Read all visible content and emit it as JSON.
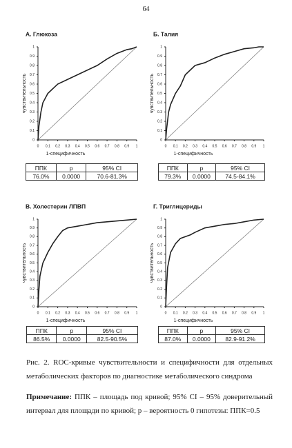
{
  "page_number": "64",
  "chart_data": [
    {
      "type": "line",
      "title": "А. Глюкоза",
      "xlabel": "1-специфичность",
      "ylabel": "чувствительность",
      "color": "#222",
      "x": [
        0,
        0.01,
        0.03,
        0.05,
        0.1,
        0.15,
        0.2,
        0.3,
        0.4,
        0.5,
        0.6,
        0.7,
        0.8,
        0.9,
        0.95,
        1
      ],
      "values": [
        0,
        0.15,
        0.3,
        0.4,
        0.5,
        0.55,
        0.6,
        0.65,
        0.7,
        0.75,
        0.8,
        0.87,
        0.93,
        0.97,
        0.98,
        1
      ],
      "xlim": [
        0,
        1
      ],
      "ylim": [
        0,
        1
      ],
      "xticks": [
        0,
        0.1,
        0.2,
        0.3,
        0.4,
        0.5,
        0.6,
        0.7,
        0.8,
        0.9,
        1
      ],
      "yticks": [
        0,
        0.1,
        0.2,
        0.3,
        0.4,
        0.5,
        0.6,
        0.7,
        0.8,
        0.9,
        1
      ]
    },
    {
      "type": "line",
      "title": "Б. Талия",
      "xlabel": "1-специфичность",
      "ylabel": "чувствительность",
      "color": "#222",
      "x": [
        0,
        0.01,
        0.03,
        0.05,
        0.1,
        0.15,
        0.2,
        0.3,
        0.4,
        0.5,
        0.6,
        0.7,
        0.8,
        0.9,
        0.95,
        1
      ],
      "values": [
        0,
        0.12,
        0.3,
        0.38,
        0.5,
        0.58,
        0.7,
        0.8,
        0.83,
        0.88,
        0.92,
        0.95,
        0.98,
        0.99,
        1,
        1
      ],
      "xlim": [
        0,
        1
      ],
      "ylim": [
        0,
        1
      ],
      "xticks": [
        0,
        0.1,
        0.2,
        0.3,
        0.4,
        0.5,
        0.6,
        0.7,
        0.8,
        0.9,
        1
      ],
      "yticks": [
        0,
        0.1,
        0.2,
        0.3,
        0.4,
        0.5,
        0.6,
        0.7,
        0.8,
        0.9,
        1
      ]
    },
    {
      "type": "line",
      "title": "В. Холестерин ЛПВП",
      "xlabel": "1-специфичность",
      "ylabel": "чувствительность",
      "color": "#222",
      "x": [
        0,
        0.01,
        0.02,
        0.05,
        0.1,
        0.15,
        0.2,
        0.25,
        0.3,
        0.4,
        0.5,
        0.6,
        0.7,
        0.8,
        0.9,
        1
      ],
      "values": [
        0,
        0.2,
        0.35,
        0.5,
        0.62,
        0.72,
        0.8,
        0.87,
        0.9,
        0.92,
        0.94,
        0.96,
        0.97,
        0.98,
        0.99,
        1
      ],
      "xlim": [
        0,
        1
      ],
      "ylim": [
        0,
        1
      ],
      "xticks": [
        0,
        0.1,
        0.2,
        0.3,
        0.4,
        0.5,
        0.6,
        0.7,
        0.8,
        0.9,
        1
      ],
      "yticks": [
        0,
        0.1,
        0.2,
        0.3,
        0.4,
        0.5,
        0.6,
        0.7,
        0.8,
        0.9,
        1
      ]
    },
    {
      "type": "line",
      "title": "Г. Триглицериды",
      "xlabel": "1-специфичность",
      "ylabel": "чувствительность",
      "color": "#222",
      "x": [
        0,
        0.01,
        0.02,
        0.05,
        0.1,
        0.15,
        0.2,
        0.25,
        0.3,
        0.4,
        0.5,
        0.6,
        0.7,
        0.8,
        0.9,
        1
      ],
      "values": [
        0,
        0.25,
        0.45,
        0.62,
        0.72,
        0.78,
        0.8,
        0.82,
        0.85,
        0.9,
        0.92,
        0.94,
        0.95,
        0.97,
        0.99,
        1
      ],
      "xlim": [
        0,
        1
      ],
      "ylim": [
        0,
        1
      ],
      "xticks": [
        0,
        0.1,
        0.2,
        0.3,
        0.4,
        0.5,
        0.6,
        0.7,
        0.8,
        0.9,
        1
      ],
      "yticks": [
        0,
        0.1,
        0.2,
        0.3,
        0.4,
        0.5,
        0.6,
        0.7,
        0.8,
        0.9,
        1
      ]
    }
  ],
  "tables": [
    {
      "header": [
        "ППК",
        "p",
        "95% CI"
      ],
      "row": [
        "76.0%",
        "0.0000",
        "70.6-81.3%"
      ]
    },
    {
      "header": [
        "ППК",
        "p",
        "95% CI"
      ],
      "row": [
        "79.3%",
        "0.0000",
        "74.5-84.1%"
      ]
    },
    {
      "header": [
        "ППК",
        "p",
        "95% CI"
      ],
      "row": [
        "86.5%",
        "0.0000",
        "82.5-90.5%"
      ]
    },
    {
      "header": [
        "ППК",
        "p",
        "95% CI"
      ],
      "row": [
        "87.0%",
        "0.0000",
        "82.9-91.2%"
      ]
    }
  ],
  "caption": "Рис. 2. ROC-кривые чувствительности и специфичности для отдельных метаболических факторов по диагностике метаболического синдрома",
  "note": {
    "label": "Примечание:",
    "text": "ППК – площадь под кривой; 95% CI – 95% доверительный интервал для площади по кривой; p – вероятность 0 гипотезы: ППК=0.5"
  }
}
